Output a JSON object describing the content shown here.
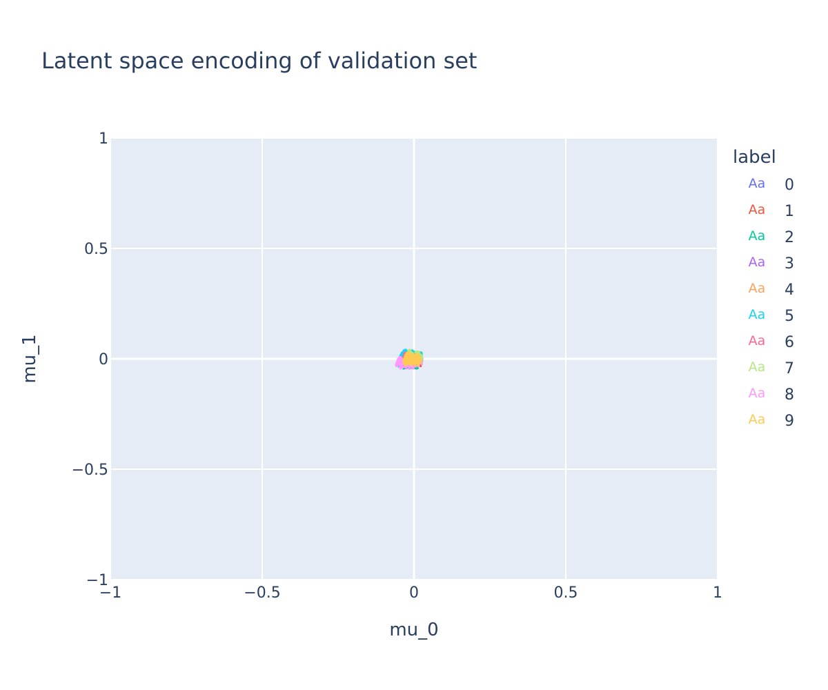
{
  "chart_data": {
    "type": "scatter",
    "title": "Latent space encoding of validation set",
    "xlabel": "mu_0",
    "ylabel": "mu_1",
    "xlim": [
      -1,
      1
    ],
    "ylim": [
      -1,
      1
    ],
    "x_ticks": [
      -1,
      -0.5,
      0,
      0.5,
      1
    ],
    "y_ticks": [
      -1,
      -0.5,
      0,
      0.5,
      1
    ],
    "x_tick_labels": [
      "−1",
      "−0.5",
      "0",
      "0.5",
      "1"
    ],
    "y_tick_labels": [
      "−1",
      "−0.5",
      "0",
      "0.5",
      "1"
    ],
    "grid": true,
    "legend": {
      "title": "label",
      "placement": "right",
      "symbol_text": "Aa"
    },
    "series": [
      {
        "name": "0",
        "color": "#636efa",
        "points": [
          [
            -0.02,
            0.01
          ],
          [
            -0.015,
            0.018
          ],
          [
            -0.01,
            0.005
          ],
          [
            -0.025,
            -0.002
          ],
          [
            -0.008,
            0.015
          ],
          [
            -0.018,
            -0.01
          ],
          [
            -0.012,
            0.022
          ]
        ]
      },
      {
        "name": "1",
        "color": "#EF553B",
        "points": [
          [
            -0.005,
            -0.015
          ],
          [
            0.0,
            -0.008
          ],
          [
            -0.01,
            -0.02
          ],
          [
            -0.003,
            -0.003
          ],
          [
            -0.008,
            -0.012
          ],
          [
            0.002,
            -0.018
          ]
        ]
      },
      {
        "name": "2",
        "color": "#00cc96",
        "points": [
          [
            -0.02,
            -0.025
          ],
          [
            -0.012,
            -0.03
          ],
          [
            -0.022,
            -0.015
          ],
          [
            -0.008,
            -0.028
          ],
          [
            -0.016,
            -0.02
          ],
          [
            -0.028,
            -0.01
          ],
          [
            0.004,
            0.02
          ]
        ]
      },
      {
        "name": "3",
        "color": "#ab63fa",
        "points": [
          [
            -0.018,
            0.0
          ],
          [
            -0.01,
            -0.005
          ],
          [
            -0.022,
            0.008
          ],
          [
            -0.014,
            -0.012
          ],
          [
            -0.006,
            0.004
          ]
        ]
      },
      {
        "name": "4",
        "color": "#FFA15A",
        "points": [
          [
            -0.004,
            0.012
          ],
          [
            0.002,
            0.006
          ],
          [
            -0.01,
            0.018
          ],
          [
            0.004,
            0.0
          ],
          [
            -0.002,
            0.02
          ]
        ]
      },
      {
        "name": "5",
        "color": "#19d3f3",
        "points": [
          [
            -0.026,
            0.015
          ],
          [
            -0.02,
            0.025
          ],
          [
            -0.03,
            0.004
          ],
          [
            -0.016,
            0.028
          ],
          [
            0.006,
            0.025
          ],
          [
            -0.028,
            -0.02
          ]
        ]
      },
      {
        "name": "6",
        "color": "#FF6692",
        "points": [
          [
            -0.012,
            0.01
          ],
          [
            -0.006,
            0.002
          ],
          [
            -0.016,
            0.016
          ],
          [
            -0.008,
            -0.006
          ]
        ]
      },
      {
        "name": "7",
        "color": "#B6E880",
        "points": [
          [
            0.0,
            0.01
          ],
          [
            -0.004,
            0.024
          ],
          [
            0.006,
            0.014
          ],
          [
            -0.002,
            0.028
          ],
          [
            0.008,
            0.004
          ]
        ]
      },
      {
        "name": "8",
        "color": "#FF97FF",
        "points": [
          [
            -0.03,
            -0.01
          ],
          [
            -0.036,
            -0.018
          ],
          [
            -0.026,
            -0.024
          ],
          [
            -0.034,
            -0.004
          ],
          [
            -0.022,
            -0.03
          ],
          [
            -0.038,
            -0.012
          ],
          [
            0.006,
            -0.01
          ],
          [
            -0.004,
            -0.02
          ]
        ]
      },
      {
        "name": "9",
        "color": "#FECB52",
        "points": [
          [
            -0.006,
            0.0
          ],
          [
            -0.01,
            0.008
          ],
          [
            -0.002,
            -0.006
          ],
          [
            -0.012,
            -0.004
          ],
          [
            -0.004,
            0.012
          ],
          [
            0.0,
            0.004
          ],
          [
            -0.008,
            -0.01
          ],
          [
            -0.014,
            0.004
          ],
          [
            -0.002,
            0.016
          ],
          [
            -0.006,
            -0.016
          ],
          [
            0.002,
            -0.002
          ],
          [
            -0.01,
            0.014
          ]
        ]
      }
    ]
  }
}
